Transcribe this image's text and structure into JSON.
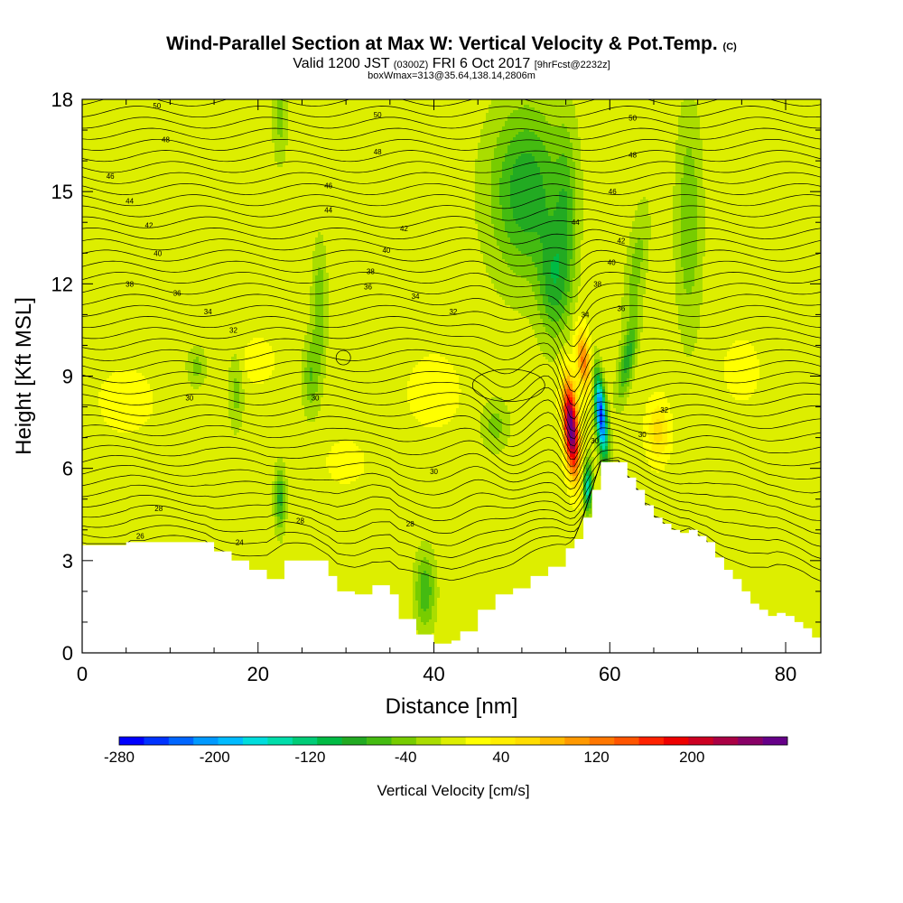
{
  "chart_data": {
    "type": "heatmap",
    "title": "Wind-Parallel Section at Max W: Vertical Velocity & Pot.Temp.",
    "title_mark": "(C)",
    "subtitle_main_a": "Valid 1200 JST",
    "subtitle_small_a": "(0300Z)",
    "subtitle_main_b": "FRI 6 Oct 2017",
    "subtitle_small_b": "[9hrFcst@2232z]",
    "subtitle2": "boxWmax=313@35.64,138.14,2806m",
    "xlabel": "Distance [nm]",
    "ylabel": "Height [Kft MSL]",
    "xlim": [
      0,
      84
    ],
    "ylim": [
      0,
      18
    ],
    "x_ticks": [
      0,
      20,
      40,
      60,
      80
    ],
    "y_ticks": [
      0,
      3,
      6,
      9,
      12,
      15,
      18
    ],
    "colorbar": {
      "label": "Vertical Velocity [cm/s]",
      "tick_values": [
        -280,
        -200,
        -120,
        -40,
        40,
        120,
        200
      ],
      "tick_labels": [
        "-280",
        "-200",
        "-120",
        "-40",
        "40",
        "120",
        "200"
      ],
      "range": [
        -280,
        280
      ],
      "colors": [
        "#0000ff",
        "#0033ff",
        "#0066ff",
        "#0099ff",
        "#00bbff",
        "#00dddd",
        "#00ddaa",
        "#00cc77",
        "#00bb44",
        "#22aa22",
        "#44bb11",
        "#77cc00",
        "#aadd00",
        "#ddee00",
        "#ffff00",
        "#ffee00",
        "#ffdd00",
        "#ffbb00",
        "#ff9900",
        "#ff7700",
        "#ff5500",
        "#ff2200",
        "#ee0000",
        "#cc0022",
        "#aa0044",
        "#880066",
        "#660088"
      ]
    },
    "background_color": "#ffee00",
    "terrain": [
      [
        0,
        3.5
      ],
      [
        5,
        3.5
      ],
      [
        5,
        3.6
      ],
      [
        14,
        3.6
      ],
      [
        15,
        3.3
      ],
      [
        17,
        3.0
      ],
      [
        19,
        2.7
      ],
      [
        21,
        2.4
      ],
      [
        23,
        3.0
      ],
      [
        26,
        3.0
      ],
      [
        28,
        2.5
      ],
      [
        29,
        2.0
      ],
      [
        31,
        1.9
      ],
      [
        33,
        2.2
      ],
      [
        35,
        1.9
      ],
      [
        36,
        1.1
      ],
      [
        38,
        0.6
      ],
      [
        40,
        0.3
      ],
      [
        42,
        0.4
      ],
      [
        43,
        0.7
      ],
      [
        45,
        1.4
      ],
      [
        47,
        1.9
      ],
      [
        49,
        2.1
      ],
      [
        51,
        2.5
      ],
      [
        53,
        2.8
      ],
      [
        55,
        3.4
      ],
      [
        56,
        3.7
      ],
      [
        57,
        4.4
      ],
      [
        58,
        5.3
      ],
      [
        59,
        6.2
      ],
      [
        61,
        6.2
      ],
      [
        62,
        5.7
      ],
      [
        63,
        5.3
      ],
      [
        64,
        4.8
      ],
      [
        65,
        4.4
      ],
      [
        66,
        4.2
      ],
      [
        67,
        4.0
      ],
      [
        68,
        3.9
      ],
      [
        69,
        4.0
      ],
      [
        70,
        3.8
      ],
      [
        71,
        3.6
      ],
      [
        72,
        3.1
      ],
      [
        73,
        2.7
      ],
      [
        74,
        2.4
      ],
      [
        75,
        2.0
      ],
      [
        76,
        1.6
      ],
      [
        77,
        1.4
      ],
      [
        78,
        1.2
      ],
      [
        79,
        1.3
      ],
      [
        80,
        1.2
      ],
      [
        81,
        1.0
      ],
      [
        82,
        0.8
      ],
      [
        83,
        0.5
      ],
      [
        84,
        0.4
      ]
    ],
    "velocity_features": [
      {
        "x": 55.6,
        "y": 7.3,
        "sx": 0.8,
        "sy": 1.5,
        "w": 280,
        "tilt": -0.25
      },
      {
        "x": 59.0,
        "y": 7.7,
        "sx": 0.6,
        "sy": 1.3,
        "w": -260,
        "tilt": -0.3
      },
      {
        "x": 57.5,
        "y": 5.4,
        "sx": 0.5,
        "sy": 0.8,
        "w": -150,
        "tilt": 0
      },
      {
        "x": 62.0,
        "y": 9.5,
        "sx": 0.8,
        "sy": 1.2,
        "w": -80,
        "tilt": 0.6
      },
      {
        "x": 50.5,
        "y": 15.0,
        "sx": 4.0,
        "sy": 2.7,
        "w": -90,
        "tilt": 0
      },
      {
        "x": 53.5,
        "y": 12.0,
        "sx": 1.6,
        "sy": 1.8,
        "w": -70,
        "tilt": 0
      },
      {
        "x": 55.0,
        "y": 14.0,
        "sx": 1.2,
        "sy": 3.0,
        "w": -50,
        "tilt": 0
      },
      {
        "x": 63.0,
        "y": 12.5,
        "sx": 1.1,
        "sy": 2.0,
        "w": -40,
        "tilt": 0.4
      },
      {
        "x": 69.0,
        "y": 14.0,
        "sx": 1.4,
        "sy": 3.5,
        "w": -50,
        "tilt": 0
      },
      {
        "x": 27.0,
        "y": 11.2,
        "sx": 0.8,
        "sy": 2.0,
        "w": -50,
        "tilt": 0
      },
      {
        "x": 26.0,
        "y": 9.0,
        "sx": 0.9,
        "sy": 1.2,
        "w": -50,
        "tilt": 0
      },
      {
        "x": 22.5,
        "y": 5.0,
        "sx": 0.6,
        "sy": 1.0,
        "w": -80,
        "tilt": 0
      },
      {
        "x": 39.0,
        "y": 2.0,
        "sx": 1.1,
        "sy": 1.2,
        "w": -70,
        "tilt": 0
      },
      {
        "x": 17.5,
        "y": 8.5,
        "sx": 0.8,
        "sy": 1.2,
        "w": -40,
        "tilt": 0
      },
      {
        "x": 47.0,
        "y": 7.4,
        "sx": 1.5,
        "sy": 0.8,
        "w": -40,
        "tilt": 0
      },
      {
        "x": 13.0,
        "y": 9.3,
        "sx": 1.0,
        "sy": 0.6,
        "w": -40,
        "tilt": 0
      },
      {
        "x": 22.5,
        "y": 17.5,
        "sx": 0.8,
        "sy": 1.5,
        "w": -40,
        "tilt": 0
      },
      {
        "x": 57.0,
        "y": 9.5,
        "sx": 0.8,
        "sy": 1.0,
        "w": 120,
        "tilt": -0.3
      },
      {
        "x": 65.5,
        "y": 7.2,
        "sx": 1.3,
        "sy": 1.0,
        "w": 60,
        "tilt": 0
      },
      {
        "x": 5.0,
        "y": 8.2,
        "sx": 3.0,
        "sy": 1.0,
        "w": 30,
        "tilt": 0
      },
      {
        "x": 40.0,
        "y": 8.5,
        "sx": 3.0,
        "sy": 1.2,
        "w": 28,
        "tilt": 0
      },
      {
        "x": 30.0,
        "y": 6.2,
        "sx": 2.5,
        "sy": 0.8,
        "w": 22,
        "tilt": 0
      },
      {
        "x": 75.0,
        "y": 9.2,
        "sx": 2.0,
        "sy": 1.0,
        "w": 28,
        "tilt": 0
      },
      {
        "x": 20.0,
        "y": 9.5,
        "sx": 2.0,
        "sy": 0.8,
        "w": 25,
        "tilt": 0
      }
    ],
    "contour_labels": [
      {
        "text": "50",
        "x": 8.5,
        "y": 17.8
      },
      {
        "text": "48",
        "x": 9.5,
        "y": 16.7
      },
      {
        "text": "46",
        "x": 3.2,
        "y": 15.5
      },
      {
        "text": "44",
        "x": 5.4,
        "y": 14.7
      },
      {
        "text": "42",
        "x": 7.6,
        "y": 13.9
      },
      {
        "text": "40",
        "x": 8.6,
        "y": 13.0
      },
      {
        "text": "38",
        "x": 5.4,
        "y": 12.0
      },
      {
        "text": "36",
        "x": 10.8,
        "y": 11.7
      },
      {
        "text": "34",
        "x": 14.3,
        "y": 11.1
      },
      {
        "text": "32",
        "x": 17.2,
        "y": 10.5
      },
      {
        "text": "30",
        "x": 12.2,
        "y": 8.3
      },
      {
        "text": "30",
        "x": 26.5,
        "y": 8.3
      },
      {
        "text": "28",
        "x": 8.7,
        "y": 4.7
      },
      {
        "text": "28",
        "x": 24.8,
        "y": 4.3
      },
      {
        "text": "26",
        "x": 6.6,
        "y": 3.8
      },
      {
        "text": "24",
        "x": 17.9,
        "y": 3.6
      },
      {
        "text": "50",
        "x": 33.6,
        "y": 17.5
      },
      {
        "text": "48",
        "x": 33.6,
        "y": 16.3
      },
      {
        "text": "46",
        "x": 28.0,
        "y": 15.2
      },
      {
        "text": "44",
        "x": 28.0,
        "y": 14.4
      },
      {
        "text": "42",
        "x": 36.6,
        "y": 13.8
      },
      {
        "text": "40",
        "x": 34.6,
        "y": 13.1
      },
      {
        "text": "38",
        "x": 32.8,
        "y": 12.4
      },
      {
        "text": "36",
        "x": 32.5,
        "y": 11.9
      },
      {
        "text": "34",
        "x": 37.9,
        "y": 11.6
      },
      {
        "text": "32",
        "x": 42.2,
        "y": 11.1
      },
      {
        "text": "30",
        "x": 40.0,
        "y": 5.9
      },
      {
        "text": "28",
        "x": 37.3,
        "y": 4.2
      },
      {
        "text": "50",
        "x": 62.6,
        "y": 17.4
      },
      {
        "text": "48",
        "x": 62.6,
        "y": 16.2
      },
      {
        "text": "46",
        "x": 60.3,
        "y": 15.0
      },
      {
        "text": "44",
        "x": 56.1,
        "y": 14.0
      },
      {
        "text": "42",
        "x": 61.3,
        "y": 13.4
      },
      {
        "text": "40",
        "x": 60.2,
        "y": 12.7
      },
      {
        "text": "38",
        "x": 58.6,
        "y": 12.0
      },
      {
        "text": "36",
        "x": 61.3,
        "y": 11.2
      },
      {
        "text": "34",
        "x": 57.2,
        "y": 11.0
      },
      {
        "text": "32",
        "x": 66.2,
        "y": 7.9
      },
      {
        "text": "30",
        "x": 63.7,
        "y": 7.1
      },
      {
        "text": "30",
        "x": 58.3,
        "y": 6.9
      }
    ]
  }
}
